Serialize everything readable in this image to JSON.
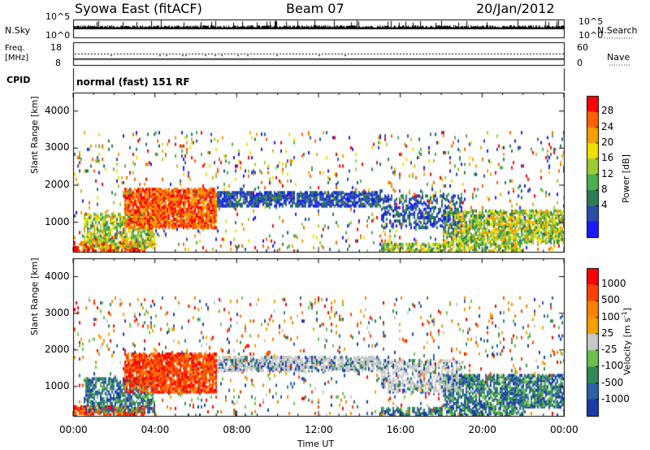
{
  "header": {
    "station": "Syowa East (fitACF)",
    "beam": "Beam 07",
    "date": "20/Jan/2012"
  },
  "panels": {
    "nsky": {
      "label": "N.Sky",
      "right_label": "N.Search",
      "ticks_left": [
        "10^5",
        "10^0"
      ],
      "ticks_right": [
        "10^5",
        "10^0"
      ]
    },
    "freq": {
      "label_line1": "Freq.",
      "label_line2": "[MHz]",
      "ticks_left": [
        "18",
        "8"
      ],
      "ticks_right": [
        "60",
        "0"
      ],
      "right_label": "Nave"
    },
    "cpid": {
      "label": "CPID",
      "value": "normal (fast) 151 RF"
    }
  },
  "chart_data": [
    {
      "type": "heatmap",
      "name": "power",
      "ylabel": "Slant Range [km]",
      "xlabel": "",
      "ylim": [
        200,
        4500
      ],
      "yticks": [
        "4000",
        "3000",
        "2000",
        "1000"
      ],
      "xlim": [
        "00:00",
        "24:00"
      ],
      "colorbar": {
        "label": "Power [dB]",
        "ticks": [
          "28",
          "24",
          "20",
          "16",
          "12",
          "8",
          "4"
        ],
        "colors": [
          "#1a1aff",
          "#2a4fa8",
          "#2e7d55",
          "#4caf50",
          "#9acd32",
          "#f0e000",
          "#f5a000",
          "#ff6000",
          "#ff0000"
        ]
      }
    },
    {
      "type": "heatmap",
      "name": "velocity",
      "ylabel": "Slant Range [km]",
      "xlabel": "Time UT",
      "ylim": [
        200,
        4500
      ],
      "yticks": [
        "4000",
        "3000",
        "2000",
        "1000"
      ],
      "xticks": [
        "00:00",
        "04:00",
        "08:00",
        "12:00",
        "16:00",
        "20:00",
        "00:00"
      ],
      "xlim": [
        "00:00",
        "24:00"
      ],
      "colorbar": {
        "label": "Velocity [m s",
        "label_sup": "-1",
        "label_end": "]",
        "ticks": [
          "1000",
          "500",
          "100",
          "25",
          "-25",
          "-100",
          "-500",
          "-1000"
        ],
        "colors": [
          "#1a3aa8",
          "#2e5fa8",
          "#2e8a55",
          "#6cc04a",
          "#c8c8c8",
          "#f5a000",
          "#ff8000",
          "#ff4000",
          "#ff0000"
        ]
      }
    }
  ]
}
